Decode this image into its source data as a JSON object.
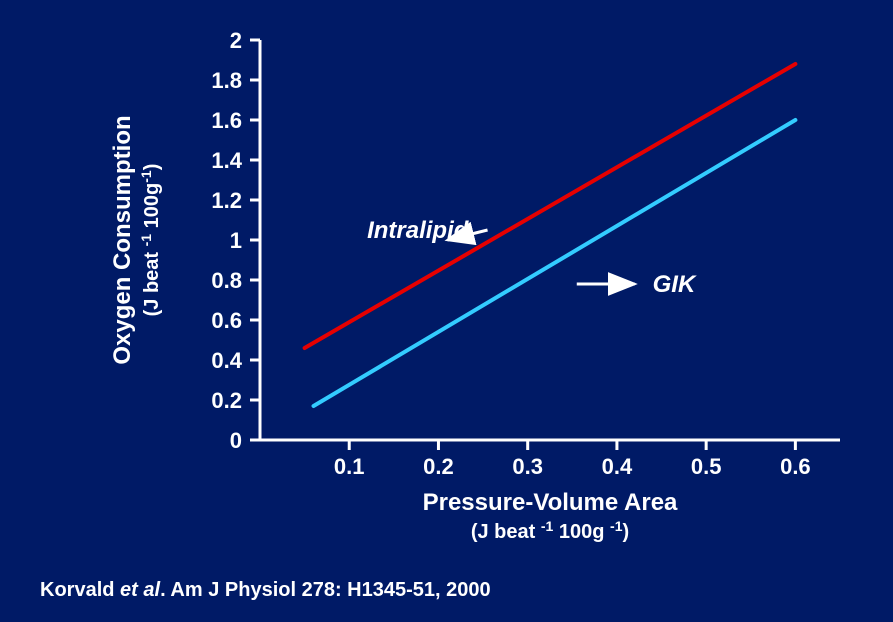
{
  "chart": {
    "type": "line",
    "background_color": "#001a66",
    "plot_background": "#001a66",
    "axis_color": "#ffffff",
    "axis_line_width": 3,
    "tick_length": 10,
    "tick_width": 3,
    "label_color": "#ffffff",
    "tick_fontsize": 22,
    "tick_fontweight": "bold",
    "axis_title_fontsize": 24,
    "axis_title_fontweight": "bold",
    "axis_subtitle_fontsize": 20,
    "axis_subtitle_fontweight": "bold",
    "x": {
      "title": "Pressure-Volume Area",
      "subtitle_parts": [
        "(J beat ",
        "-1",
        " 100g ",
        "-1",
        ")"
      ],
      "min": 0,
      "max": 0.65,
      "ticks": [
        0.1,
        0.2,
        0.3,
        0.4,
        0.5,
        0.6
      ]
    },
    "y": {
      "title": "Oxygen Consumption",
      "subtitle_parts": [
        "(J beat ",
        "-1",
        " 100g",
        "-1",
        ")"
      ],
      "min": 0,
      "max": 2.0,
      "ticks": [
        0,
        0.2,
        0.4,
        0.6,
        0.8,
        1,
        1.2,
        1.4,
        1.6,
        1.8,
        2
      ]
    },
    "series": [
      {
        "name": "Intralipid",
        "label": "Intralipid",
        "label_fontstyle": "italic",
        "label_fontweight": "bold",
        "label_fontsize": 24,
        "color": "#e60000",
        "line_width": 4,
        "points": [
          [
            0.05,
            0.46
          ],
          [
            0.6,
            1.88
          ]
        ],
        "legend_arrow": {
          "from": [
            0.255,
            1.05
          ],
          "to": [
            0.21,
            1.0
          ]
        },
        "label_pos": [
          0.12,
          1.05
        ]
      },
      {
        "name": "GIK",
        "label": "GIK",
        "label_fontstyle": "italic",
        "label_fontweight": "bold",
        "label_fontsize": 24,
        "color": "#33ccff",
        "line_width": 4,
        "points": [
          [
            0.06,
            0.17
          ],
          [
            0.6,
            1.6
          ]
        ],
        "legend_arrow": {
          "from": [
            0.355,
            0.78
          ],
          "to": [
            0.42,
            0.78
          ]
        },
        "label_pos": [
          0.44,
          0.78
        ]
      }
    ],
    "arrow_color": "#ffffff",
    "arrow_width": 3
  },
  "citation": {
    "author": "Korvald ",
    "etal": "et al",
    "rest": ". Am J Physiol 278: H1345-51, 2000"
  }
}
